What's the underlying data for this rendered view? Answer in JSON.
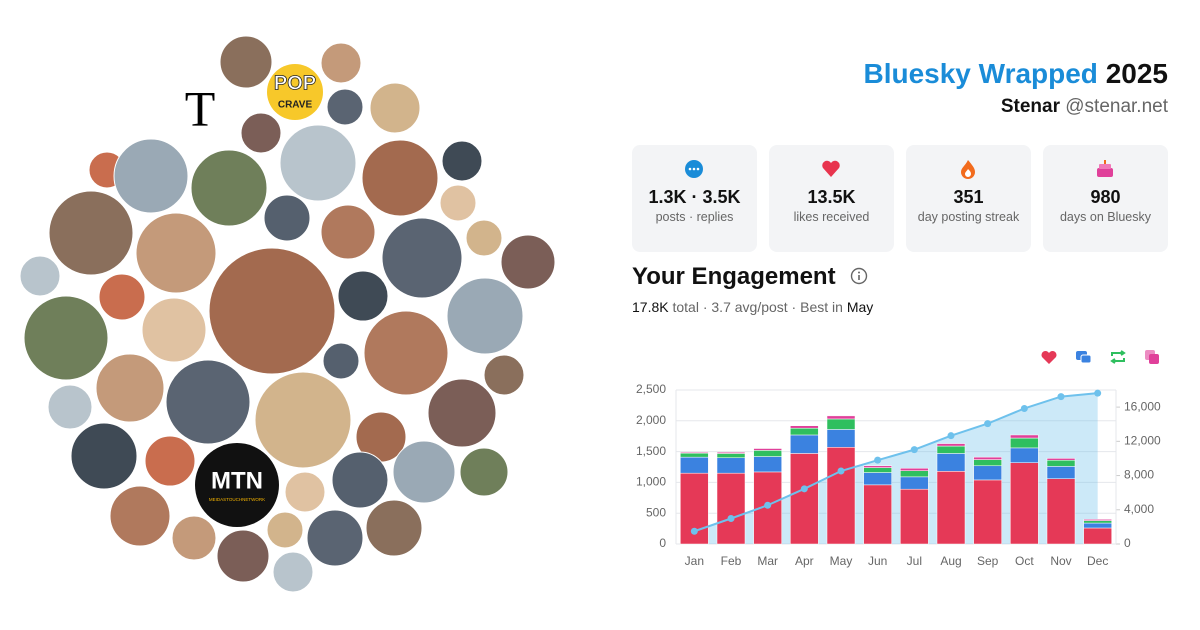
{
  "header": {
    "title": "Bluesky Wrapped",
    "year": "2025",
    "name": "Stenar",
    "handle": "@stenar.net"
  },
  "avatars": {
    "logos": {
      "times": "T",
      "pop": "POP",
      "crave": "CRAVE",
      "mtn": "MTN",
      "mtn_sub": "MEIDASTOUCHNETWORK"
    }
  },
  "stats": [
    {
      "value": "1.3K · 3.5K",
      "label": "posts · replies"
    },
    {
      "value": "13.5K",
      "label": "likes received"
    },
    {
      "value": "351",
      "label": "day posting streak"
    },
    {
      "value": "980",
      "label": "days on Bluesky"
    }
  ],
  "engagement": {
    "title": "Your Engagement",
    "total": "17.8K",
    "total_label": "total ·",
    "detail": "3.7 avg/post · Best in",
    "best": "May"
  },
  "chart_data": {
    "type": "stacked-bar-line",
    "categories": [
      "Jan",
      "Feb",
      "Mar",
      "Apr",
      "May",
      "Jun",
      "Jul",
      "Aug",
      "Sep",
      "Oct",
      "Nov",
      "Dec"
    ],
    "series": [
      {
        "color": "#e53957",
        "values": [
          1150,
          1150,
          1170,
          1470,
          1570,
          960,
          890,
          1180,
          1040,
          1320,
          1060,
          260
        ]
      },
      {
        "color": "#3b82e0",
        "values": [
          260,
          250,
          250,
          300,
          290,
          200,
          200,
          290,
          230,
          240,
          200,
          80
        ]
      },
      {
        "color": "#2fbf5f",
        "values": [
          65,
          70,
          100,
          110,
          170,
          80,
          100,
          120,
          100,
          160,
          100,
          40
        ]
      },
      {
        "color": "#e0409a",
        "values": [
          15,
          20,
          30,
          40,
          50,
          30,
          40,
          40,
          40,
          50,
          30,
          20
        ]
      },
      {
        "color": "#6ec1ec",
        "axis": "y2",
        "values": [
          1490,
          2980,
          4530,
          6450,
          8530,
          9800,
          11030,
          12660,
          14070,
          15840,
          17230,
          17630
        ]
      }
    ],
    "ylim": [
      0,
      2500
    ],
    "yticks": [
      0,
      500,
      {
        "value": 1000,
        "label": "1,000"
      },
      {
        "value": 1500,
        "label": "1,500"
      },
      {
        "value": 2000,
        "label": "2,000"
      },
      {
        "value": 2500,
        "label": "2,500"
      }
    ],
    "y2lim": [
      0,
      18000
    ],
    "y2ticks": [
      0,
      {
        "value": 4000,
        "label": "4,000"
      },
      {
        "value": 8000,
        "label": "8,000"
      },
      {
        "value": 12000,
        "label": "12,000"
      },
      {
        "value": 16000,
        "label": "16,000"
      }
    ],
    "grid": true
  }
}
